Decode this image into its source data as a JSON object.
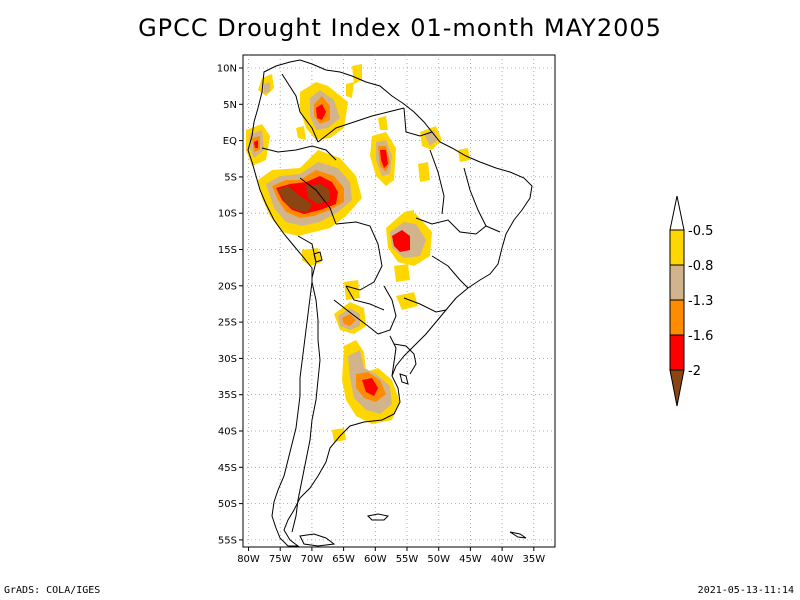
{
  "title": "GPCC Drought Index 01-month MAY2005",
  "footer": {
    "left": "GrADS: COLA/IGES",
    "right": "2021-05-13-11:14"
  },
  "axes": {
    "lat_labels": [
      "10N",
      "5N",
      "EQ",
      "5S",
      "10S",
      "15S",
      "20S",
      "25S",
      "30S",
      "35S",
      "40S",
      "45S",
      "50S",
      "55S"
    ],
    "lon_labels": [
      "80W",
      "75W",
      "70W",
      "65W",
      "60W",
      "55W",
      "50W",
      "45W",
      "40W",
      "35W"
    ]
  },
  "legend": {
    "labels": [
      "-0.5",
      "-0.8",
      "-1.3",
      "-1.6",
      "-2"
    ],
    "colors": {
      "yellow": "#ffd700",
      "tan": "#d2b48c",
      "orange": "#ff8c00",
      "red": "#ff0000",
      "brown": "#8b4513"
    }
  }
}
